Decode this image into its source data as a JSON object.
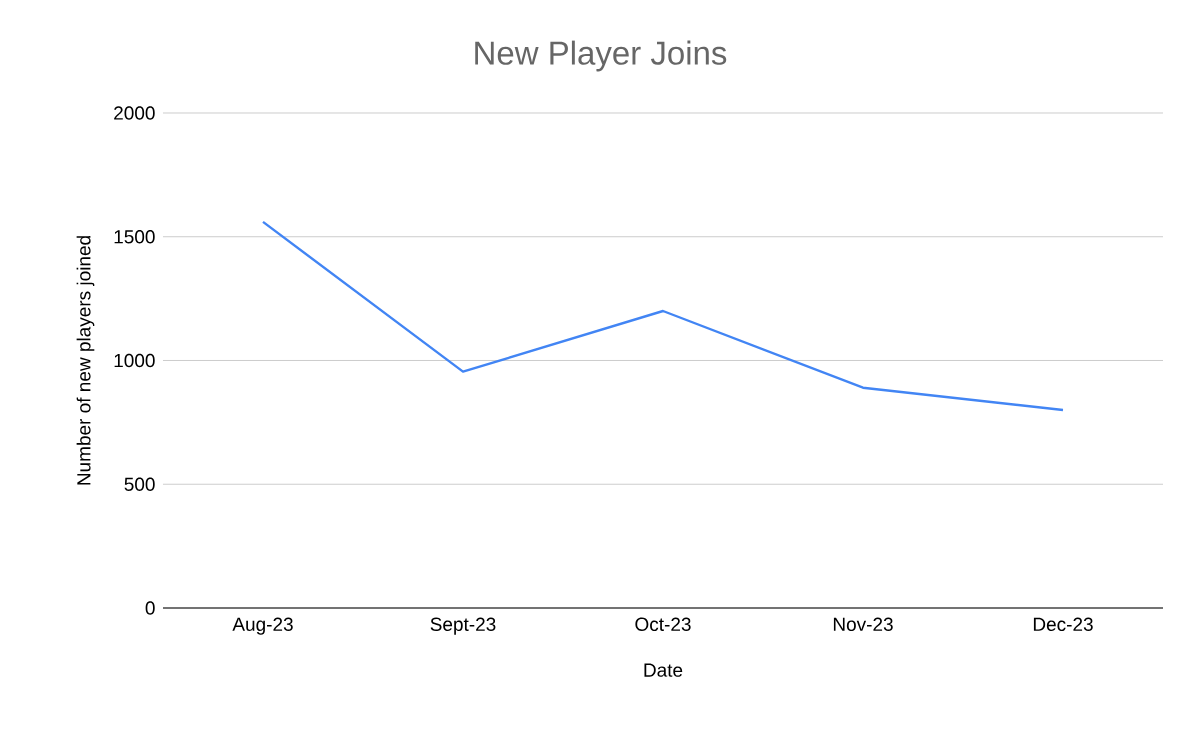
{
  "chart_data": {
    "type": "line",
    "title": "New Player Joins",
    "xlabel": "Date",
    "ylabel": "Number of new players joined",
    "categories": [
      "Aug-23",
      "Sept-23",
      "Oct-23",
      "Nov-23",
      "Dec-23"
    ],
    "series": [
      {
        "color": "#4285f4",
        "values": [
          1560,
          955,
          1200,
          890,
          800
        ]
      }
    ],
    "ylim": [
      0,
      2000
    ],
    "yticks": [
      0,
      500,
      1000,
      1500,
      2000
    ],
    "grid": "y",
    "marker": "none",
    "line_style": "solid"
  }
}
